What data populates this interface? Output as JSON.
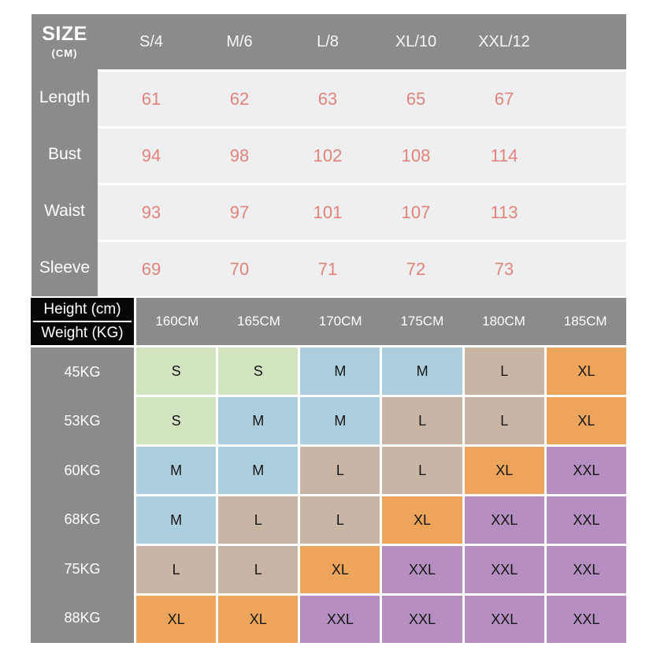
{
  "colors": {
    "header_gray": "#8b8b8b",
    "row_bg": "#f0eff0",
    "value_text": "#e0837c",
    "corner_black": "#070707"
  },
  "size_chart": {
    "title": "SIZE",
    "unit_label": "(CM)",
    "columns": [
      "S/4",
      "M/6",
      "L/8",
      "XL/10",
      "XXL/12"
    ],
    "rows": [
      {
        "label": "Length",
        "values": [
          "61",
          "62",
          "63",
          "65",
          "67"
        ]
      },
      {
        "label": "Bust",
        "values": [
          "94",
          "98",
          "102",
          "108",
          "114"
        ]
      },
      {
        "label": "Waist",
        "values": [
          "93",
          "97",
          "101",
          "107",
          "113"
        ]
      },
      {
        "label": "Sleeve",
        "values": [
          "69",
          "70",
          "71",
          "72",
          "73"
        ]
      }
    ]
  },
  "fit_chart": {
    "corner_top_label": "Height (cm)",
    "corner_bottom_label": "Weight (KG)",
    "height_columns": [
      "160CM",
      "165CM",
      "170CM",
      "175CM",
      "180CM",
      "185CM"
    ],
    "weight_rows": [
      "45KG",
      "53KG",
      "60KG",
      "68KG",
      "75KG",
      "88KG"
    ],
    "cells": [
      [
        "S",
        "S",
        "M",
        "M",
        "L",
        "XL"
      ],
      [
        "S",
        "M",
        "M",
        "L",
        "L",
        "XL"
      ],
      [
        "M",
        "M",
        "L",
        "L",
        "XL",
        "XXL"
      ],
      [
        "M",
        "L",
        "L",
        "XL",
        "XXL",
        "XXL"
      ],
      [
        "L",
        "L",
        "XL",
        "XXL",
        "XXL",
        "XXL"
      ],
      [
        "XL",
        "XL",
        "XXL",
        "XXL",
        "XXL",
        "XXL"
      ]
    ],
    "size_colors": {
      "S": "#d3e5c0",
      "M": "#abcfdf",
      "L": "#c8b5a3",
      "XL": "#eca55b",
      "XXL": "#b58fc1"
    }
  },
  "chart_data": [
    {
      "type": "table",
      "title": "SIZE (CM)",
      "columns": [
        "",
        "S/4",
        "M/6",
        "L/8",
        "XL/10",
        "XXL/12"
      ],
      "rows": [
        [
          "Length",
          61,
          62,
          63,
          65,
          67
        ],
        [
          "Bust",
          94,
          98,
          102,
          108,
          114
        ],
        [
          "Waist",
          93,
          97,
          101,
          107,
          113
        ],
        [
          "Sleeve",
          69,
          70,
          71,
          72,
          73
        ]
      ]
    },
    {
      "type": "table",
      "title": "Height (cm) / Weight (KG) size matrix",
      "columns": [
        "Weight \\ Height",
        "160CM",
        "165CM",
        "170CM",
        "175CM",
        "180CM",
        "185CM"
      ],
      "rows": [
        [
          "45KG",
          "S",
          "S",
          "M",
          "M",
          "L",
          "XL"
        ],
        [
          "53KG",
          "S",
          "M",
          "M",
          "L",
          "L",
          "XL"
        ],
        [
          "60KG",
          "M",
          "M",
          "L",
          "L",
          "XL",
          "XXL"
        ],
        [
          "68KG",
          "M",
          "L",
          "L",
          "XL",
          "XXL",
          "XXL"
        ],
        [
          "75KG",
          "L",
          "L",
          "XL",
          "XXL",
          "XXL",
          "XXL"
        ],
        [
          "88KG",
          "XL",
          "XL",
          "XXL",
          "XXL",
          "XXL",
          "XXL"
        ]
      ]
    }
  ]
}
